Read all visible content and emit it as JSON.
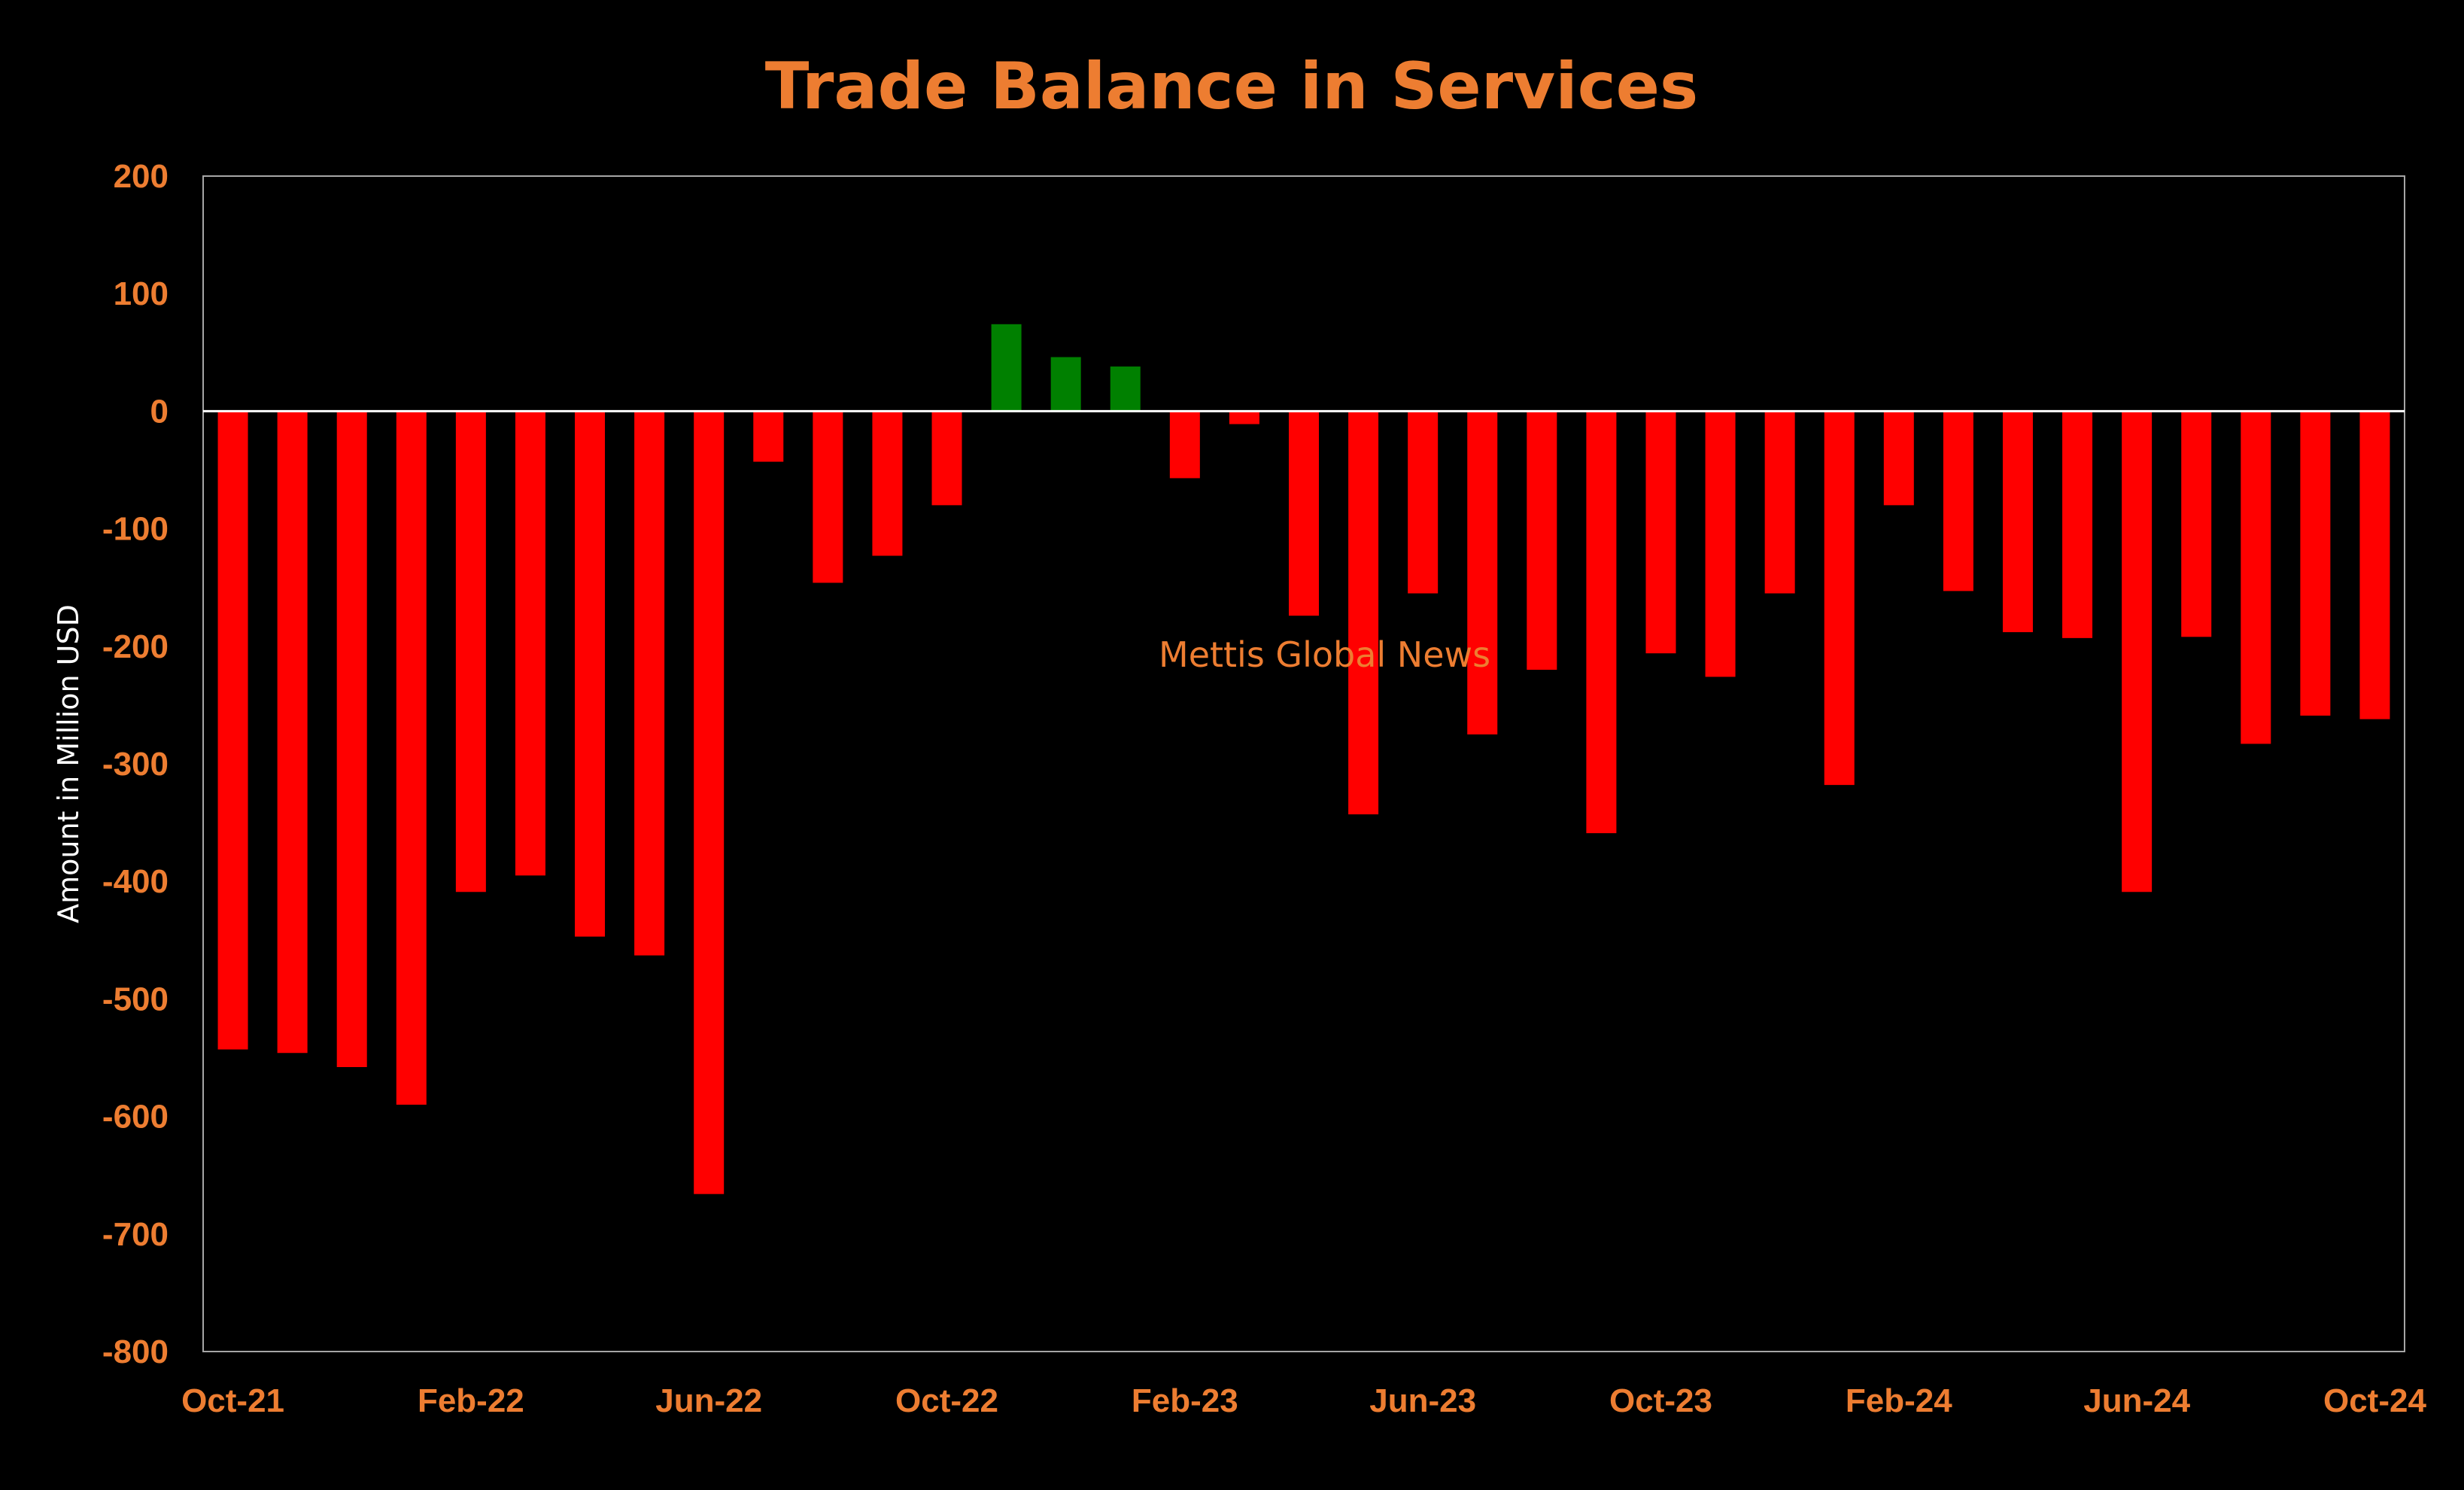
{
  "colors": {
    "background": "#000000",
    "text_accent": "#ED7D31",
    "axis_label": "#FFFFFF",
    "negative_bar": "#FF0000",
    "positive_bar": "#008000",
    "frame": "#A6A6A6",
    "zero_line": "#FFFFFF"
  },
  "chart_data": {
    "type": "bar",
    "title": "Trade Balance in Services",
    "xlabel": "",
    "ylabel": "Amount in Million USD",
    "ylim": [
      -800,
      200
    ],
    "yticks": [
      200,
      100,
      0,
      -100,
      -200,
      -300,
      -400,
      -500,
      -600,
      -700,
      -800
    ],
    "ytick_labels": [
      "200",
      "100",
      "0",
      "-100",
      "-200",
      "-300",
      "-400",
      "-500",
      "-600",
      "-700",
      "-800"
    ],
    "xtick_labels": [
      "Oct-21",
      "Feb-22",
      "Jun-22",
      "Oct-22",
      "Feb-23",
      "Jun-23",
      "Oct-23",
      "Feb-24",
      "Jun-24",
      "Oct-24"
    ],
    "xtick_every": 4,
    "grid": false,
    "legend": "none",
    "annotation": "Mettis Global News",
    "categories": [
      "Oct-21",
      "Nov-21",
      "Dec-21",
      "Jan-22",
      "Feb-22",
      "Mar-22",
      "Apr-22",
      "May-22",
      "Jun-22",
      "Jul-22",
      "Aug-22",
      "Sep-22",
      "Oct-22",
      "Nov-22",
      "Dec-22",
      "Jan-23",
      "Feb-23",
      "Mar-23",
      "Apr-23",
      "May-23",
      "Jun-23",
      "Jul-23",
      "Aug-23",
      "Sep-23",
      "Oct-23",
      "Nov-23",
      "Dec-23",
      "Jan-24",
      "Feb-24",
      "Mar-24",
      "Apr-24",
      "May-24",
      "Jun-24",
      "Jul-24",
      "Aug-24",
      "Sep-24",
      "Oct-24"
    ],
    "values": [
      -543,
      -546,
      -558,
      -590,
      -409,
      -395,
      -447,
      -463,
      -666,
      -43,
      -146,
      -123,
      -80,
      74,
      46,
      38,
      -57,
      -11,
      -174,
      -343,
      -155,
      -275,
      -220,
      -359,
      -206,
      -226,
      -155,
      -318,
      -80,
      -153,
      -188,
      -193,
      -409,
      -192,
      -283,
      -259,
      -262
    ]
  }
}
